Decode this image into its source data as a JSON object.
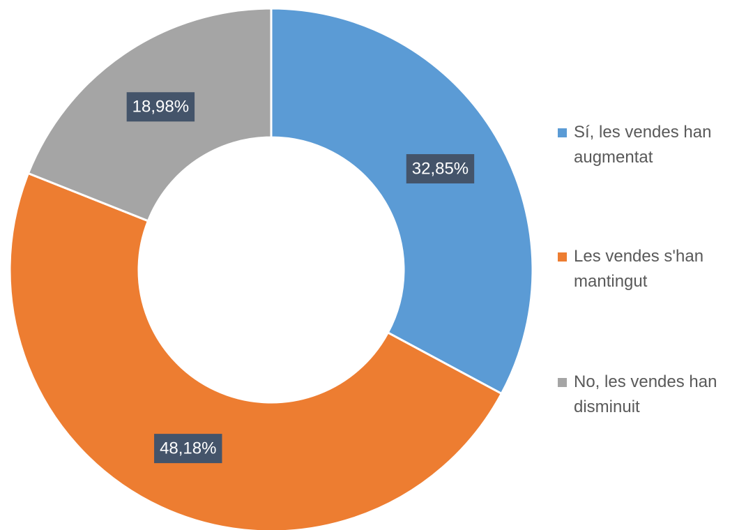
{
  "chart_data": {
    "type": "donut",
    "categories": [
      "Sí, les vendes han augmentat",
      "Les vendes s'han mantingut",
      "No, les vendes han disminuit"
    ],
    "values": [
      32.85,
      48.18,
      18.98
    ],
    "value_labels": [
      "32,85%",
      "48,18%",
      "18,98%"
    ],
    "colors": [
      "#5b9bd5",
      "#ed7d31",
      "#a5a5a5"
    ],
    "legend": "right"
  }
}
